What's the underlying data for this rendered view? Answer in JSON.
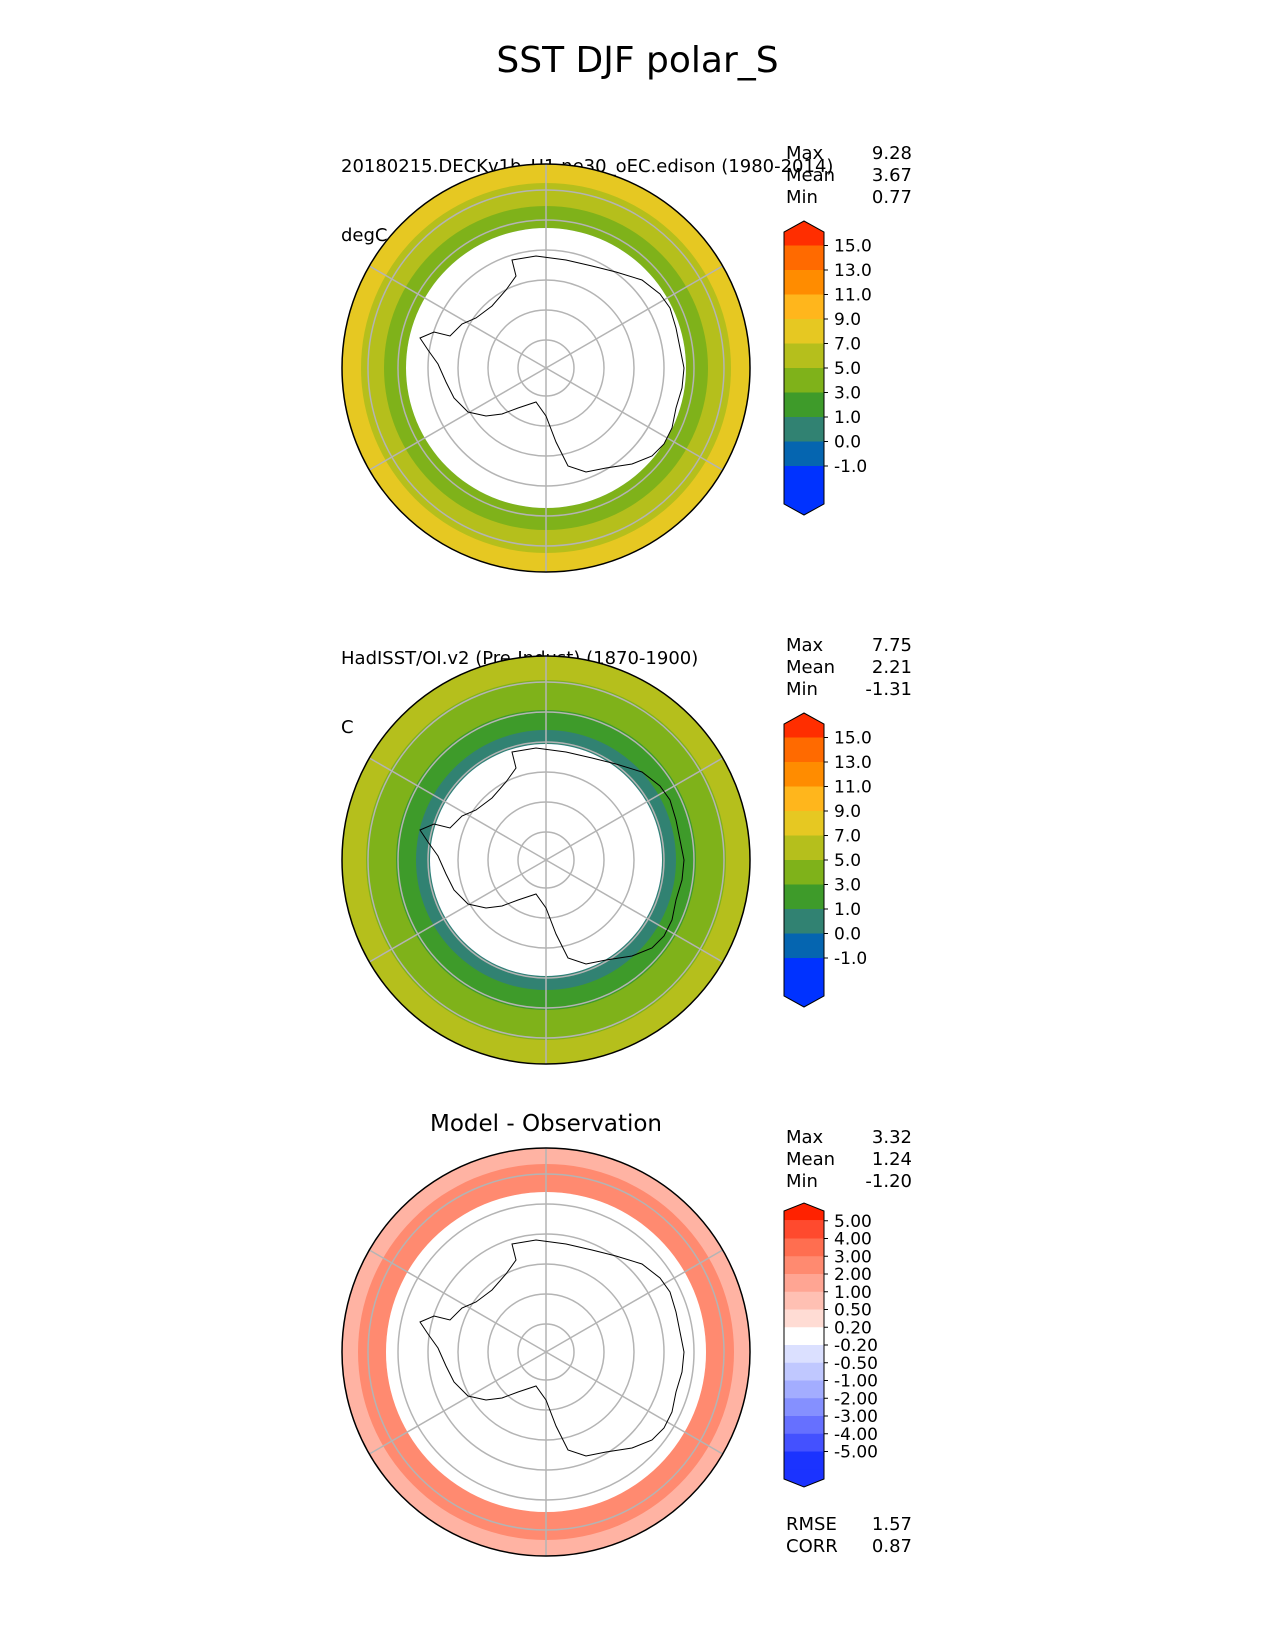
{
  "title": "SST DJF polar_S",
  "panels": [
    {
      "name": "model",
      "title_line1": "20180215.DECKv1b_H1.ne30_oEC.edison (1980-2014)",
      "title_line2": "degC",
      "stats": [
        {
          "label": "Max",
          "value": "9.28"
        },
        {
          "label": "Mean",
          "value": "3.67"
        },
        {
          "label": "Min",
          "value": "0.77"
        }
      ],
      "colorbar": {
        "labels": [
          "15.0",
          "13.0",
          "11.0",
          "9.0",
          "7.0",
          "5.0",
          "3.0",
          "1.0",
          "0.0",
          "-1.0"
        ],
        "colors": [
          "#ff2e00",
          "#ff6a00",
          "#ff8c00",
          "#ffb61c",
          "#e6c822",
          "#b5bf1c",
          "#7fb21a",
          "#3e9b2a",
          "#318272",
          "#0565b0",
          "#0032ff",
          "#0032ff"
        ]
      }
    },
    {
      "name": "observation",
      "title_line1": "HadISST/OI.v2 (Pre-Indust) (1870-1900)",
      "title_line2": "C",
      "stats": [
        {
          "label": "Max",
          "value": "7.75"
        },
        {
          "label": "Mean",
          "value": "2.21"
        },
        {
          "label": "Min",
          "value": "-1.31"
        }
      ],
      "colorbar": {
        "labels": [
          "15.0",
          "13.0",
          "11.0",
          "9.0",
          "7.0",
          "5.0",
          "3.0",
          "1.0",
          "0.0",
          "-1.0"
        ],
        "colors": [
          "#ff2e00",
          "#ff6a00",
          "#ff8c00",
          "#ffb61c",
          "#e6c822",
          "#b5bf1c",
          "#7fb21a",
          "#3e9b2a",
          "#318272",
          "#0565b0",
          "#0032ff",
          "#0032ff"
        ]
      }
    },
    {
      "name": "difference",
      "title": "Model - Observation",
      "stats": [
        {
          "label": "Max",
          "value": "3.32"
        },
        {
          "label": "Mean",
          "value": "1.24"
        },
        {
          "label": "Min",
          "value": "-1.20"
        }
      ],
      "extra_stats": [
        {
          "label": "RMSE",
          "value": "1.57"
        },
        {
          "label": "CORR",
          "value": "0.87"
        }
      ],
      "colorbar": {
        "labels": [
          "5.00",
          "4.00",
          "3.00",
          "2.00",
          "1.00",
          "0.50",
          "0.20",
          "-0.20",
          "-0.50",
          "-1.00",
          "-2.00",
          "-3.00",
          "-4.00",
          "-5.00"
        ],
        "colors": [
          "#ff2200",
          "#ff4a2e",
          "#ff6e50",
          "#ff8a70",
          "#ffa593",
          "#ffc0b3",
          "#ffdcd4",
          "#ffffff",
          "#dbe0ff",
          "#c0c8ff",
          "#a3adff",
          "#8590ff",
          "#6670ff",
          "#4451ff",
          "#1b33ff",
          "#1b33ff"
        ]
      }
    }
  ],
  "chart_data": [
    {
      "type": "heatmap",
      "title": "20180215.DECKv1b_H1.ne30_oEC.edison (1980-2014)",
      "units": "degC",
      "projection": "south polar stereographic",
      "stats": {
        "Max": 9.28,
        "Mean": 3.67,
        "Min": 0.77
      },
      "colorbar_levels": [
        -1.0,
        0.0,
        1.0,
        3.0,
        5.0,
        7.0,
        9.0,
        11.0,
        13.0,
        15.0
      ],
      "rings": [
        {
          "name": "sea-ice",
          "level": null,
          "color": "#ffffff"
        },
        {
          "name": "band-1",
          "level": 1.0,
          "color": "#3e9b2a"
        },
        {
          "name": "band-2",
          "level": 3.0,
          "color": "#7fb21a"
        },
        {
          "name": "band-3",
          "level": 5.0,
          "color": "#b5bf1c"
        },
        {
          "name": "band-4",
          "level": 7.0,
          "color": "#e6c822"
        }
      ]
    },
    {
      "type": "heatmap",
      "title": "HadISST/OI.v2 (Pre-Indust) (1870-1900)",
      "units": "C",
      "projection": "south polar stereographic",
      "stats": {
        "Max": 7.75,
        "Mean": 2.21,
        "Min": -1.31
      },
      "colorbar_levels": [
        -1.0,
        0.0,
        1.0,
        3.0,
        5.0,
        7.0,
        9.0,
        11.0,
        13.0,
        15.0
      ],
      "rings": [
        {
          "name": "sea-ice",
          "level": null,
          "color": "#ffffff"
        },
        {
          "name": "band-0",
          "level": -1.0,
          "color": "#0565b0"
        },
        {
          "name": "band-1",
          "level": 0.0,
          "color": "#318272"
        },
        {
          "name": "band-2",
          "level": 1.0,
          "color": "#3e9b2a"
        },
        {
          "name": "band-3",
          "level": 3.0,
          "color": "#7fb21a"
        },
        {
          "name": "band-4",
          "level": 5.0,
          "color": "#b5bf1c"
        }
      ]
    },
    {
      "type": "heatmap",
      "title": "Model - Observation",
      "projection": "south polar stereographic",
      "stats": {
        "Max": 3.32,
        "Mean": 1.24,
        "Min": -1.2,
        "RMSE": 1.57,
        "CORR": 0.87
      },
      "colorbar_levels": [
        -5.0,
        -4.0,
        -3.0,
        -2.0,
        -1.0,
        -0.5,
        -0.2,
        0.2,
        0.5,
        1.0,
        2.0,
        3.0,
        4.0,
        5.0
      ],
      "rings": [
        {
          "name": "sea-ice",
          "level": null,
          "color": "#ffffff"
        },
        {
          "name": "band-1",
          "level": 1.0,
          "color": "#ffa593"
        },
        {
          "name": "band-2",
          "level": 2.0,
          "color": "#ff8a70"
        },
        {
          "name": "band-3",
          "level": 1.0,
          "color": "#ffb3a3"
        }
      ]
    }
  ]
}
